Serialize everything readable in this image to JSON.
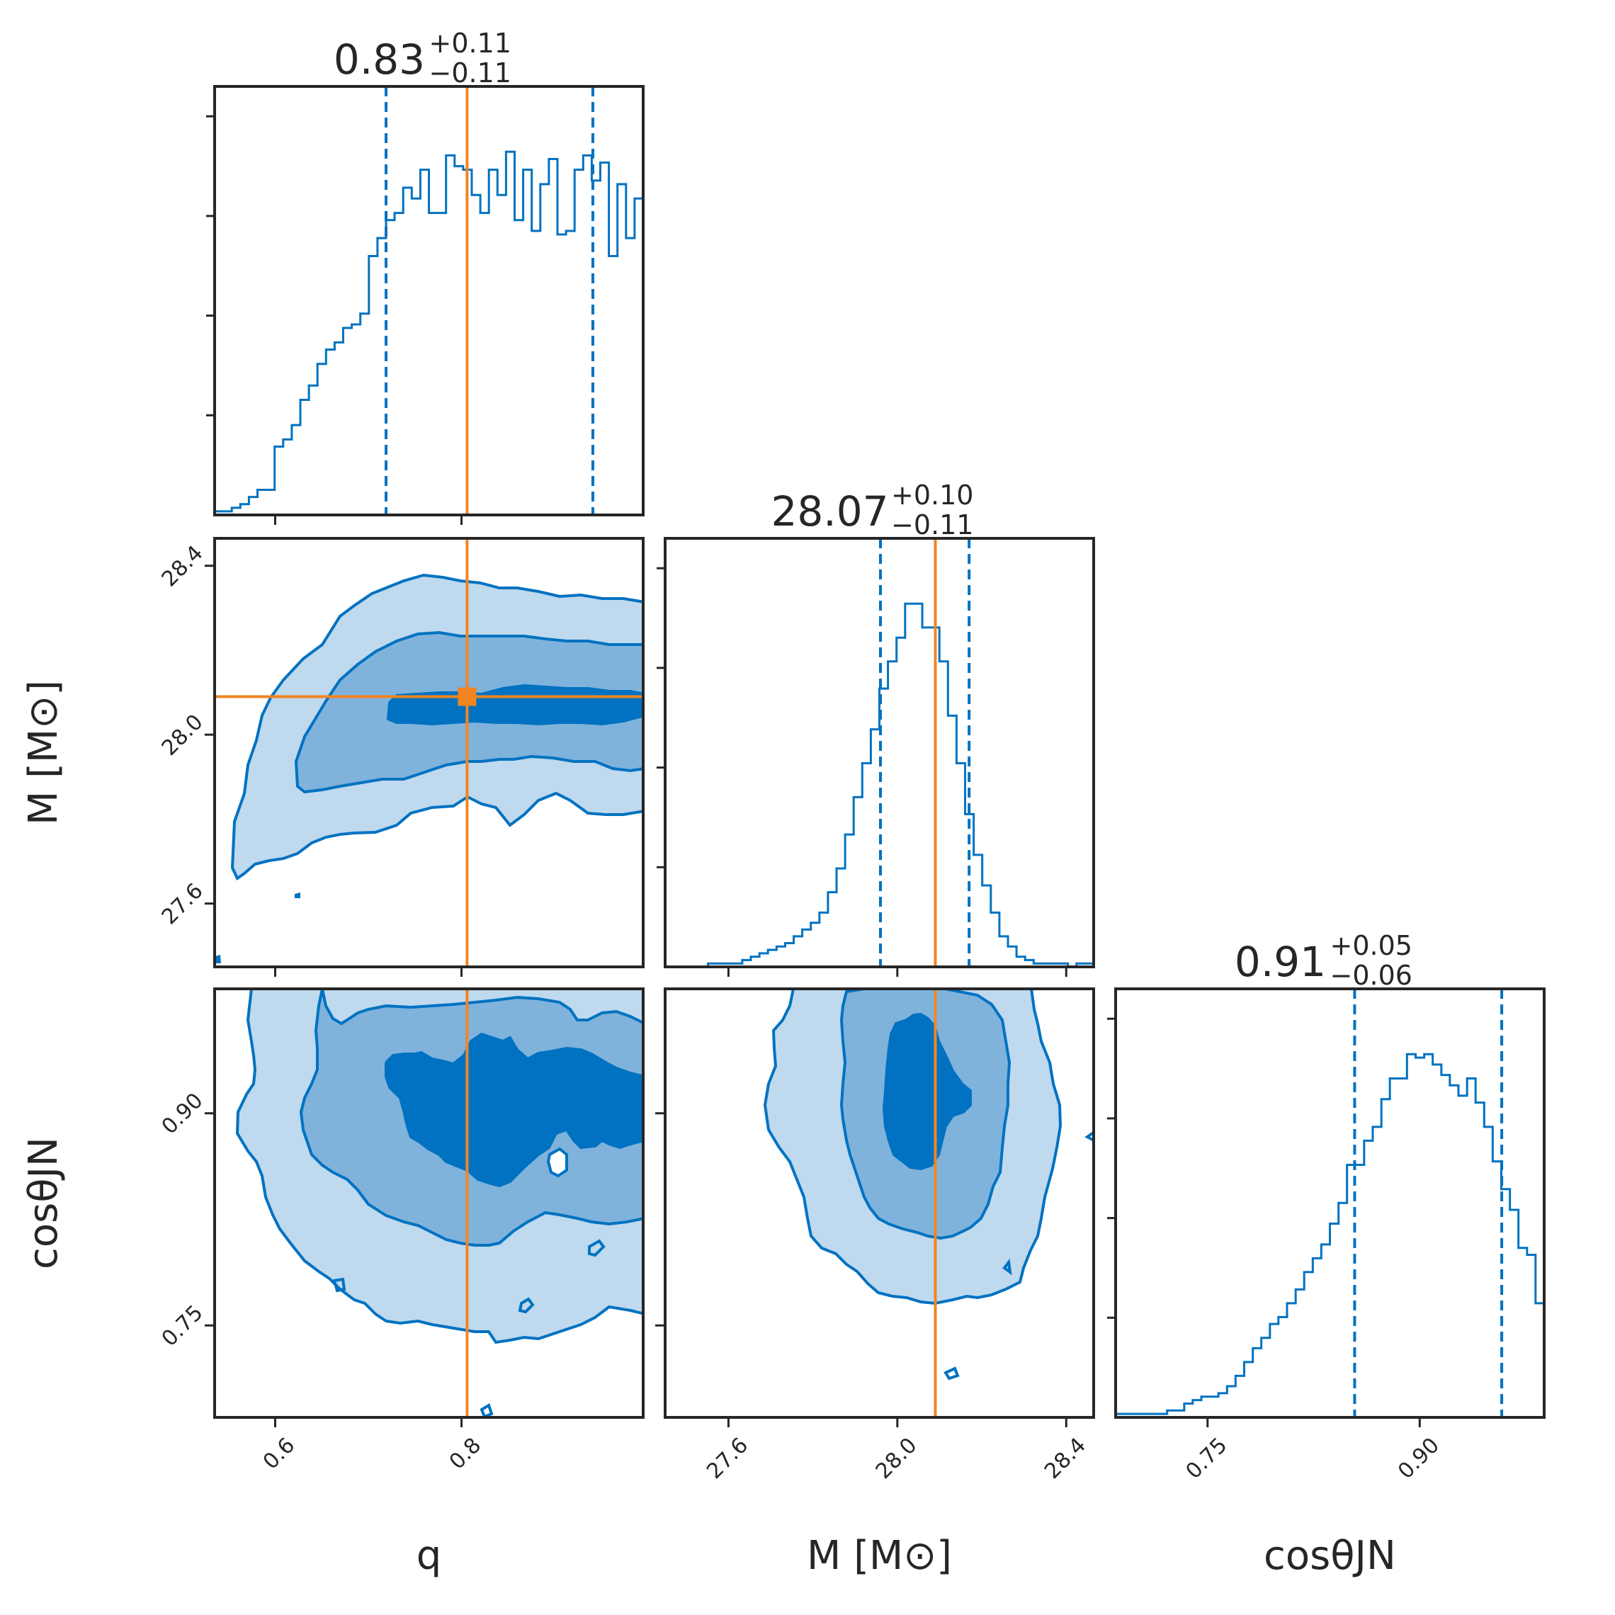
{
  "chart_data": {
    "type": "corner",
    "parameters": [
      {
        "label": "q",
        "axis_label": "q",
        "range": [
          0.535,
          0.995
        ],
        "ticks": [
          {
            "value": 0.6,
            "label": "0.6"
          },
          {
            "value": 0.8,
            "label": "0.8"
          }
        ],
        "truth": 0.806,
        "quantiles": [
          0.719,
          0.941
        ],
        "title": {
          "median": "0.83",
          "plus": "+0.11",
          "minus": "−0.11"
        },
        "histogram": {
          "bin_edges": [
            0.535,
            0.5442,
            0.5534,
            0.5626,
            0.5718,
            0.581,
            0.5902,
            0.5994,
            0.6086,
            0.6178,
            0.627,
            0.6362,
            0.6454,
            0.6546,
            0.6638,
            0.673,
            0.6822,
            0.6914,
            0.7006,
            0.7098,
            0.719,
            0.7282,
            0.7374,
            0.7466,
            0.7558,
            0.765,
            0.7742,
            0.7834,
            0.7926,
            0.8018,
            0.811,
            0.8202,
            0.8294,
            0.8386,
            0.8478,
            0.857,
            0.8662,
            0.8754,
            0.8846,
            0.8938,
            0.903,
            0.9122,
            0.9214,
            0.9306,
            0.9398,
            0.949,
            0.9582,
            0.9674,
            0.9766,
            0.9858,
            0.995
          ],
          "counts": [
            0.01,
            0.01,
            0.02,
            0.03,
            0.05,
            0.07,
            0.07,
            0.19,
            0.21,
            0.25,
            0.32,
            0.36,
            0.42,
            0.46,
            0.48,
            0.52,
            0.53,
            0.56,
            0.72,
            0.77,
            0.82,
            0.84,
            0.91,
            0.88,
            0.96,
            0.84,
            0.84,
            1.0,
            0.97,
            0.96,
            0.89,
            0.84,
            0.96,
            0.89,
            1.01,
            0.82,
            0.96,
            0.79,
            0.92,
            0.99,
            0.78,
            0.79,
            0.96,
            1.0,
            0.93,
            0.98,
            0.72,
            0.92,
            0.77,
            0.88
          ]
        }
      },
      {
        "label": "M [M⊙]",
        "axis_label": "M [M⊙]",
        "range": [
          27.45,
          28.465
        ],
        "ticks": [
          {
            "value": 27.6,
            "label": "27.6"
          },
          {
            "value": 28.0,
            "label": "28.0"
          },
          {
            "value": 28.4,
            "label": "28.4"
          }
        ],
        "truth": 28.09,
        "quantiles": [
          27.96,
          28.17
        ],
        "title": {
          "median": "28.07",
          "plus": "+0.10",
          "minus": "−0.11"
        },
        "histogram": {
          "bin_edges": [
            27.45,
            27.4703,
            27.4906,
            27.5109,
            27.5312,
            27.5515,
            27.5718,
            27.5921,
            27.6124,
            27.6327,
            27.653,
            27.6733,
            27.6936,
            27.7139,
            27.7342,
            27.7545,
            27.7748,
            27.7951,
            27.8154,
            27.8357,
            27.856,
            27.8763,
            27.8966,
            27.9169,
            27.9372,
            27.9575,
            27.9778,
            27.9981,
            28.0184,
            28.0387,
            28.059,
            28.0793,
            28.0996,
            28.1199,
            28.1402,
            28.1605,
            28.1808,
            28.2011,
            28.2214,
            28.2417,
            28.262,
            28.2823,
            28.3026,
            28.3229,
            28.3432,
            28.3635,
            28.3838,
            28.4041,
            28.4244,
            28.4447,
            28.465
          ],
          "counts": [
            0,
            0,
            0,
            0,
            0,
            0.01,
            0.01,
            0.01,
            0.01,
            0.02,
            0.03,
            0.04,
            0.05,
            0.06,
            0.07,
            0.09,
            0.11,
            0.13,
            0.16,
            0.22,
            0.29,
            0.39,
            0.5,
            0.6,
            0.7,
            0.82,
            0.9,
            0.97,
            1.07,
            1.07,
            1.0,
            1.0,
            0.9,
            0.74,
            0.6,
            0.45,
            0.33,
            0.24,
            0.16,
            0.09,
            0.06,
            0.03,
            0.02,
            0.01,
            0.01,
            0.01,
            0.01,
            0,
            0.01,
            0.01
          ]
        }
      },
      {
        "label": "cosθJN",
        "axis_label": "cosθJN",
        "range": [
          0.685,
          0.988
        ],
        "ticks": [
          {
            "value": 0.75,
            "label": "0.75"
          },
          {
            "value": 0.9,
            "label": "0.90"
          }
        ],
        "truth": null,
        "quantiles": [
          0.854,
          0.958
        ],
        "title": {
          "median": "0.91",
          "plus": "+0.05",
          "minus": "−0.06"
        },
        "histogram": {
          "bin_edges": [
            0.685,
            0.6911,
            0.6971,
            0.7032,
            0.7092,
            0.7153,
            0.7214,
            0.7274,
            0.7335,
            0.7395,
            0.7456,
            0.7517,
            0.7577,
            0.7638,
            0.7698,
            0.7759,
            0.782,
            0.788,
            0.7941,
            0.8001,
            0.8062,
            0.8123,
            0.8183,
            0.8244,
            0.8304,
            0.8365,
            0.8426,
            0.8486,
            0.8547,
            0.8607,
            0.8668,
            0.8729,
            0.8789,
            0.885,
            0.891,
            0.8971,
            0.9032,
            0.9092,
            0.9153,
            0.9213,
            0.9274,
            0.9335,
            0.9395,
            0.9456,
            0.9516,
            0.9577,
            0.9638,
            0.9698,
            0.9759,
            0.9819,
            0.988
          ],
          "counts": [
            0.01,
            0.01,
            0.01,
            0.01,
            0.01,
            0.01,
            0.02,
            0.02,
            0.04,
            0.05,
            0.06,
            0.06,
            0.07,
            0.09,
            0.12,
            0.16,
            0.2,
            0.23,
            0.27,
            0.29,
            0.33,
            0.37,
            0.42,
            0.46,
            0.5,
            0.56,
            0.62,
            0.73,
            0.73,
            0.8,
            0.84,
            0.92,
            0.98,
            0.98,
            1.05,
            1.04,
            1.05,
            1.02,
            0.99,
            0.96,
            0.93,
            0.98,
            0.91,
            0.84,
            0.74,
            0.66,
            0.6,
            0.49,
            0.47,
            0.33
          ]
        }
      }
    ],
    "contour_levels": [
      "39.3%",
      "86.5%",
      "98.9%"
    ],
    "truth_point": {
      "x_param": "q",
      "y_param": "M [M⊙]",
      "x": 0.806,
      "y": 28.09
    },
    "colors": {
      "posterior": "#0072c1",
      "truth": "#f28522",
      "fill_inner": "#0072c1",
      "fill_mid": "#7fb3dc",
      "fill_outer": "#bfd9ee",
      "frame": "#262626"
    },
    "grid": false,
    "legend": "none"
  }
}
